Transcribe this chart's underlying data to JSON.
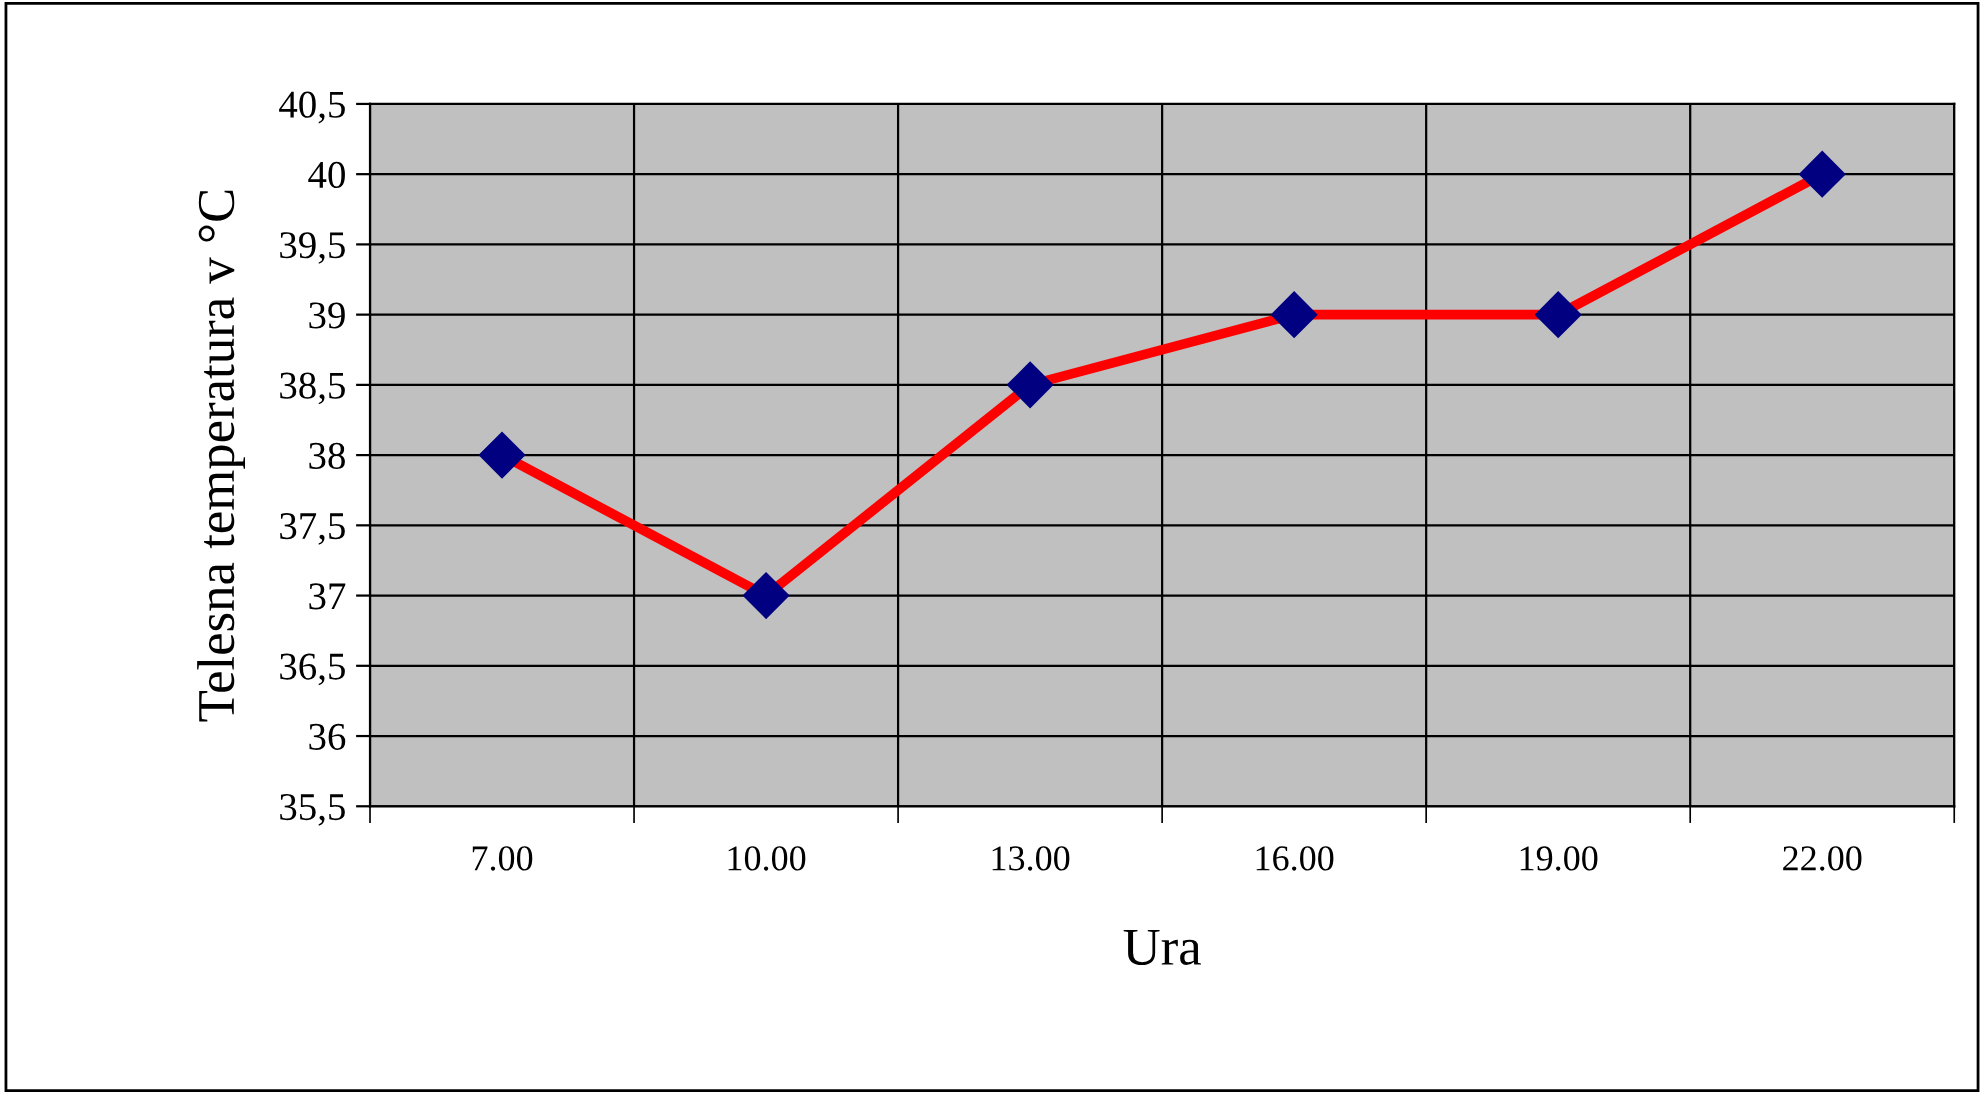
{
  "chart_data": {
    "type": "line",
    "xlabel": "Ura",
    "ylabel": "Telesna temperatura v °C",
    "categories": [
      "7.00",
      "10.00",
      "13.00",
      "16.00",
      "19.00",
      "22.00"
    ],
    "series": [
      {
        "color": "#ff0000",
        "values": [
          38,
          37,
          38.5,
          39,
          39,
          40
        ]
      }
    ],
    "ylim": [
      35.5,
      40.5
    ],
    "yticks": [
      {
        "value": 35.5,
        "label": "35,5"
      },
      36,
      {
        "value": 36.5,
        "label": "36,5"
      },
      37,
      {
        "value": 37.5,
        "label": "37,5"
      },
      38,
      {
        "value": 38.5,
        "label": "38,5"
      },
      39,
      {
        "value": 39.5,
        "label": "39,5"
      },
      40,
      {
        "value": 40.5,
        "label": "40,5"
      }
    ],
    "grid": true,
    "marker": "diamond",
    "line_style": "solid",
    "legend": false
  }
}
